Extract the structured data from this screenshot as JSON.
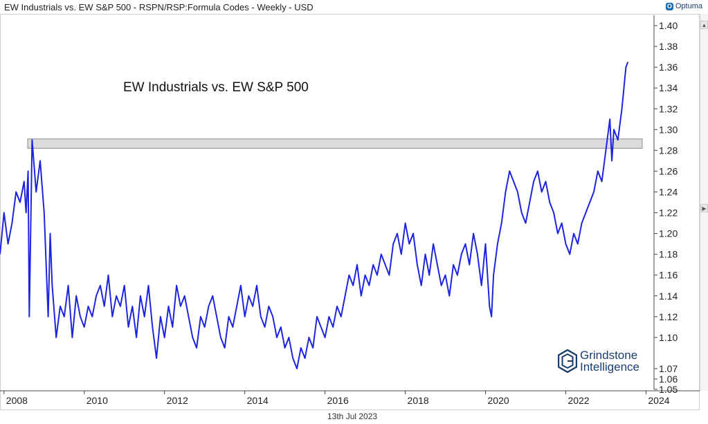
{
  "header": {
    "title": "EW Industrials vs. EW S&P 500 - RSPN/RSP:Formula Codes - Weekly - USD",
    "logo_text": "Optuma",
    "logo_mark": "O"
  },
  "watermark": {
    "line1": "Grindstone",
    "line2": "Intelligence"
  },
  "footer": {
    "date": "13th Jul 2023"
  },
  "colors": {
    "series": "#1c24e0",
    "band_fill": "#dcdcdc",
    "band_stroke": "#8c8c8c",
    "axis": "#444444",
    "brand": "#1a3d6b"
  },
  "chart_data": {
    "type": "line",
    "title": "EW Industrials vs. EW S&P 500",
    "xlabel": "",
    "ylabel": "",
    "xlim": [
      2007.9,
      2024.2
    ],
    "ylim": [
      1.05,
      1.41
    ],
    "x_ticks": [
      "2008",
      "2010",
      "2012",
      "2014",
      "2016",
      "2018",
      "2020",
      "2022",
      "2024"
    ],
    "y_ticks": [
      "1.40",
      "1.38",
      "1.36",
      "1.34",
      "1.32",
      "1.30",
      "1.28",
      "1.26",
      "1.24",
      "1.22",
      "1.20",
      "1.18",
      "1.16",
      "1.14",
      "1.12",
      "1.10",
      "1.07",
      "1.06",
      "1.05"
    ],
    "resistance_band": [
      1.282,
      1.291
    ],
    "series": [
      {
        "name": "RSPN/RSP",
        "x": [
          2007.9,
          2008.0,
          2008.1,
          2008.2,
          2008.3,
          2008.4,
          2008.5,
          2008.55,
          2008.6,
          2008.63,
          2008.7,
          2008.8,
          2008.9,
          2009.0,
          2009.1,
          2009.15,
          2009.2,
          2009.3,
          2009.4,
          2009.5,
          2009.6,
          2009.7,
          2009.8,
          2009.9,
          2010.0,
          2010.1,
          2010.2,
          2010.3,
          2010.4,
          2010.5,
          2010.6,
          2010.7,
          2010.8,
          2010.9,
          2011.0,
          2011.1,
          2011.2,
          2011.3,
          2011.4,
          2011.5,
          2011.6,
          2011.7,
          2011.8,
          2011.9,
          2012.0,
          2012.1,
          2012.2,
          2012.3,
          2012.4,
          2012.5,
          2012.6,
          2012.7,
          2012.8,
          2012.9,
          2013.0,
          2013.1,
          2013.2,
          2013.3,
          2013.4,
          2013.5,
          2013.6,
          2013.7,
          2013.8,
          2013.9,
          2014.0,
          2014.1,
          2014.2,
          2014.3,
          2014.4,
          2014.5,
          2014.6,
          2014.7,
          2014.8,
          2014.9,
          2015.0,
          2015.1,
          2015.2,
          2015.3,
          2015.4,
          2015.5,
          2015.6,
          2015.7,
          2015.8,
          2015.9,
          2016.0,
          2016.1,
          2016.2,
          2016.3,
          2016.4,
          2016.5,
          2016.6,
          2016.7,
          2016.8,
          2016.9,
          2017.0,
          2017.1,
          2017.2,
          2017.3,
          2017.4,
          2017.5,
          2017.6,
          2017.7,
          2017.8,
          2017.9,
          2018.0,
          2018.1,
          2018.2,
          2018.3,
          2018.4,
          2018.5,
          2018.6,
          2018.7,
          2018.8,
          2018.9,
          2019.0,
          2019.1,
          2019.2,
          2019.3,
          2019.4,
          2019.5,
          2019.6,
          2019.7,
          2019.8,
          2019.9,
          2020.0,
          2020.1,
          2020.15,
          2020.2,
          2020.3,
          2020.4,
          2020.5,
          2020.6,
          2020.7,
          2020.8,
          2020.9,
          2021.0,
          2021.1,
          2021.2,
          2021.3,
          2021.4,
          2021.5,
          2021.6,
          2021.7,
          2021.8,
          2021.9,
          2022.0,
          2022.1,
          2022.2,
          2022.3,
          2022.4,
          2022.5,
          2022.6,
          2022.7,
          2022.8,
          2022.9,
          2023.0,
          2023.1,
          2023.15,
          2023.2,
          2023.3,
          2023.4,
          2023.45,
          2023.5,
          2023.55
        ],
        "y": [
          1.18,
          1.22,
          1.19,
          1.21,
          1.24,
          1.23,
          1.25,
          1.22,
          1.26,
          1.12,
          1.29,
          1.24,
          1.27,
          1.22,
          1.12,
          1.2,
          1.15,
          1.1,
          1.13,
          1.12,
          1.15,
          1.1,
          1.14,
          1.12,
          1.11,
          1.13,
          1.12,
          1.14,
          1.15,
          1.13,
          1.16,
          1.12,
          1.14,
          1.13,
          1.15,
          1.11,
          1.13,
          1.1,
          1.14,
          1.12,
          1.15,
          1.11,
          1.08,
          1.12,
          1.1,
          1.13,
          1.11,
          1.15,
          1.13,
          1.14,
          1.12,
          1.1,
          1.09,
          1.12,
          1.11,
          1.13,
          1.14,
          1.12,
          1.1,
          1.09,
          1.12,
          1.11,
          1.13,
          1.15,
          1.12,
          1.14,
          1.13,
          1.15,
          1.12,
          1.11,
          1.13,
          1.12,
          1.1,
          1.11,
          1.09,
          1.1,
          1.08,
          1.07,
          1.09,
          1.08,
          1.1,
          1.09,
          1.12,
          1.11,
          1.1,
          1.12,
          1.11,
          1.13,
          1.12,
          1.14,
          1.16,
          1.15,
          1.17,
          1.14,
          1.16,
          1.15,
          1.17,
          1.16,
          1.18,
          1.17,
          1.16,
          1.19,
          1.2,
          1.18,
          1.21,
          1.19,
          1.2,
          1.17,
          1.15,
          1.18,
          1.16,
          1.19,
          1.17,
          1.15,
          1.16,
          1.14,
          1.17,
          1.16,
          1.18,
          1.19,
          1.17,
          1.2,
          1.18,
          1.15,
          1.19,
          1.13,
          1.12,
          1.16,
          1.19,
          1.21,
          1.24,
          1.26,
          1.25,
          1.24,
          1.22,
          1.21,
          1.23,
          1.25,
          1.26,
          1.24,
          1.25,
          1.23,
          1.22,
          1.2,
          1.21,
          1.19,
          1.18,
          1.2,
          1.19,
          1.21,
          1.22,
          1.23,
          1.24,
          1.26,
          1.25,
          1.28,
          1.31,
          1.27,
          1.3,
          1.29,
          1.32,
          1.34,
          1.36,
          1.365
        ]
      }
    ]
  }
}
